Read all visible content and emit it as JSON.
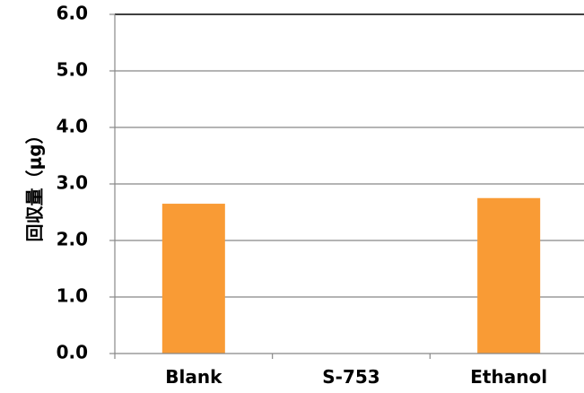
{
  "chart_data": {
    "type": "bar",
    "title": "",
    "xlabel": "",
    "ylabel": "回収量（μg）",
    "categories": [
      "Blank",
      "S-753",
      "Ethanol"
    ],
    "series": [
      {
        "values": [
          2.65,
          0,
          2.75
        ]
      }
    ],
    "ylim": [
      0,
      6
    ],
    "yticks": [
      "0.0",
      "1.0",
      "2.0",
      "3.0",
      "4.0",
      "5.0",
      "6.0"
    ],
    "grid": true,
    "legend": "none",
    "colors": {
      "bar": "#F99B35",
      "grid": "#888888",
      "axis": "#888888",
      "text": "#000000"
    }
  }
}
